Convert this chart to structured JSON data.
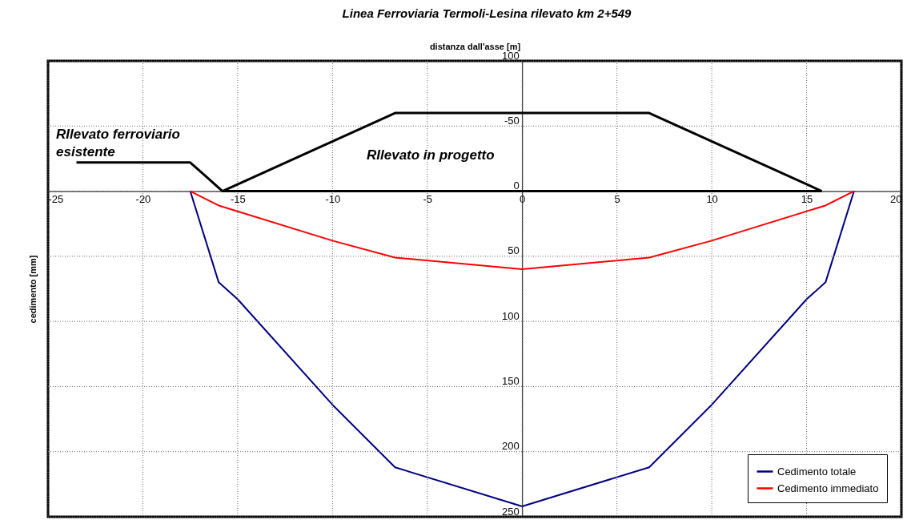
{
  "chart_data": {
    "type": "line",
    "title": "Linea Ferroviaria Termoli-Lesina rilevato km 2+549",
    "xlabel": "distanza dall'asse [m]",
    "ylabel": "cedimento [mm]",
    "xlim": [
      -25,
      20
    ],
    "xticks": [
      -25,
      -20,
      -15,
      -10,
      -5,
      0,
      5,
      10,
      15,
      20
    ],
    "ylim": [
      250,
      -100
    ],
    "yticks": [
      {
        "value": -100,
        "label": "100"
      },
      -50,
      0,
      50,
      100,
      150,
      200,
      250
    ],
    "grid": true,
    "legend": "bottom right",
    "series": [
      {
        "name": "Cedimento totale",
        "color": "#000080",
        "x": [
          -17.5,
          -16,
          -15,
          -10,
          -6.7,
          0,
          6.7,
          10,
          15,
          16,
          17.5
        ],
        "values": [
          0,
          70,
          83,
          164,
          212,
          242,
          212,
          164,
          83,
          70,
          0
        ]
      },
      {
        "name": "Cedimento immediato",
        "color": "#ff0000",
        "x": [
          -17.5,
          -16,
          -10,
          -6.7,
          0,
          6.7,
          10,
          16,
          17.5
        ],
        "values": [
          0,
          11,
          38,
          51,
          60,
          51,
          38,
          11,
          0
        ]
      },
      {
        "color": "#000000",
        "x": [
          -23.5,
          -17.5,
          -15.8
        ],
        "values": [
          -22,
          -22,
          0
        ]
      },
      {
        "color": "#000000",
        "x": [
          -15.8,
          -6.7,
          6.7,
          15.8
        ],
        "values": [
          0,
          -60,
          -60,
          0
        ]
      },
      {
        "color": "#000000",
        "x": [
          -15.8,
          15.8
        ],
        "values": [
          0,
          0
        ]
      }
    ],
    "annotations": [
      "RIlevato  ferroviario\nesistente",
      "RIlevato in progetto"
    ]
  }
}
